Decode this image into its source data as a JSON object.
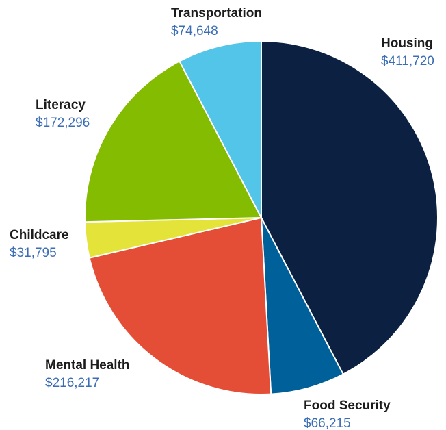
{
  "chart_data": {
    "type": "pie",
    "categories": [
      "Housing",
      "Food Security",
      "Mental Health",
      "Childcare",
      "Literacy",
      "Transportation"
    ],
    "values": [
      411720,
      66215,
      216217,
      31795,
      172296,
      74648
    ],
    "value_labels": [
      "$411,720",
      "$66,215",
      "$216,217",
      "$31,795",
      "$172,296",
      "$74,648"
    ],
    "colors": [
      "#0c2141",
      "#00609a",
      "#e54e36",
      "#e3e33a",
      "#83bc00",
      "#52c5e9"
    ]
  }
}
